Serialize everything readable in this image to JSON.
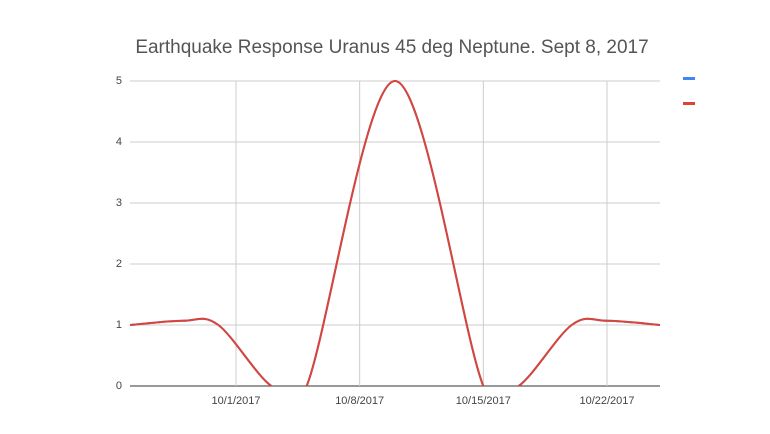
{
  "chart_data": {
    "type": "line",
    "title": "Earthquake Response Uranus 45 deg Neptune. Sept 8, 2017",
    "x": [
      "9/25/2017",
      "9/28/2017",
      "9/30/2017",
      "10/3/2017",
      "10/5/2017",
      "10/10/2017",
      "10/15/2017",
      "10/17/2017",
      "10/20/2017",
      "10/22/2017",
      "10/25/2017"
    ],
    "series": [
      {
        "color": "#4285f4",
        "values": [
          1,
          1.07,
          1,
          0,
          0,
          5,
          0,
          0,
          1,
          1.07,
          1
        ]
      },
      {
        "color": "#db4437",
        "values": [
          1,
          1.07,
          1,
          0,
          0,
          5,
          0,
          0,
          1,
          1.07,
          1
        ]
      }
    ],
    "xlim": [
      "9/25/2017",
      "10/25/2017"
    ],
    "xticks": [
      "10/1/2017",
      "10/8/2017",
      "10/15/2017",
      "10/22/2017"
    ],
    "ylim": [
      0,
      5
    ],
    "yticks": [
      0,
      1,
      2,
      3,
      4,
      5
    ],
    "grid": true,
    "smooth": true,
    "legend": "right"
  }
}
